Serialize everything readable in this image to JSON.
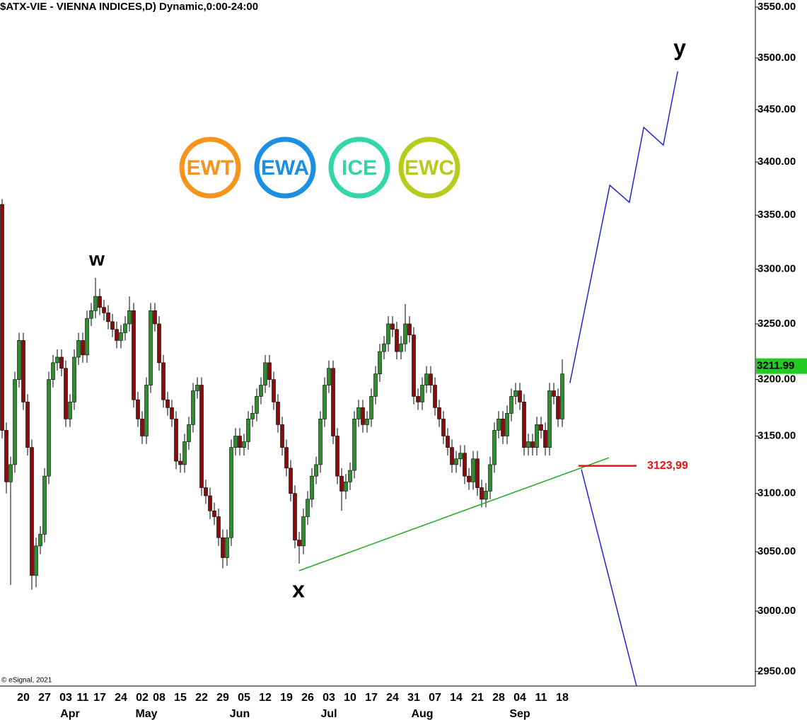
{
  "chart_data": {
    "type": "candlestick",
    "title": "$ATX-VIE - VIENNA INDICES,D) Dynamic,0:00-24:00",
    "copyright": "© eSignal, 2021",
    "badges": [
      "EWT",
      "EWA",
      "ICE",
      "EWC"
    ],
    "annotations": [
      "w",
      "x",
      "y"
    ],
    "log_scale": true,
    "up_color": "#2f8f2f",
    "down_color": "#8b0a0a",
    "ylim": [
      2938,
      3557
    ],
    "yticks": [
      {
        "value": 3550,
        "label": "3550.00"
      },
      {
        "value": 3500,
        "label": "3500.00"
      },
      {
        "value": 3450,
        "label": "3450.00"
      },
      {
        "value": 3400,
        "label": "3400.00"
      },
      {
        "value": 3350,
        "label": "3350.00"
      },
      {
        "value": 3300,
        "label": "3300.00"
      },
      {
        "value": 3250,
        "label": "3250.00"
      },
      {
        "value": 3200,
        "label": "3200.00"
      },
      {
        "value": 3150,
        "label": "3150.00"
      },
      {
        "value": 3100,
        "label": "3100.00"
      },
      {
        "value": 3050,
        "label": "3050.00"
      },
      {
        "value": 3000,
        "label": "3000.00"
      },
      {
        "value": 2950,
        "label": "2950.00"
      }
    ],
    "last_price": {
      "value": 3211.99,
      "label": "3211.99",
      "color": "#22cc22"
    },
    "level": {
      "value": 3123.99,
      "label": "3123,99",
      "color": "#ee1111"
    },
    "categories": [
      null,
      null,
      null,
      null,
      null,
      "20",
      null,
      null,
      null,
      null,
      "27",
      null,
      null,
      null,
      null,
      "03",
      null,
      null,
      null,
      "11",
      null,
      null,
      null,
      "17",
      null,
      null,
      null,
      null,
      "24",
      null,
      null,
      null,
      null,
      "02",
      null,
      null,
      null,
      "08",
      null,
      null,
      null,
      null,
      "15",
      null,
      null,
      null,
      null,
      "22",
      null,
      null,
      null,
      null,
      "29",
      null,
      null,
      null,
      null,
      "05",
      null,
      null,
      null,
      null,
      "12",
      null,
      null,
      null,
      null,
      "19",
      null,
      null,
      null,
      null,
      "26",
      null,
      null,
      null,
      null,
      "03",
      null,
      null,
      null,
      null,
      "10",
      null,
      null,
      null,
      null,
      "17",
      null,
      null,
      null,
      null,
      "24",
      null,
      null,
      null,
      null,
      "31",
      null,
      null,
      null,
      null,
      "07",
      null,
      null,
      null,
      null,
      "14",
      null,
      null,
      null,
      null,
      "21",
      null,
      null,
      null,
      null,
      "28",
      null,
      null,
      null,
      null,
      "04",
      null,
      null,
      null,
      null,
      "11",
      null,
      null,
      null,
      null,
      "18"
    ],
    "months": [
      null,
      null,
      null,
      null,
      null,
      null,
      null,
      null,
      null,
      null,
      null,
      null,
      null,
      null,
      null,
      null,
      "Apr",
      null,
      null,
      null,
      null,
      null,
      null,
      null,
      null,
      null,
      null,
      null,
      null,
      null,
      null,
      null,
      null,
      null,
      "May",
      null,
      null,
      null,
      null,
      null,
      null,
      null,
      null,
      null,
      null,
      null,
      null,
      null,
      null,
      null,
      null,
      null,
      null,
      null,
      null,
      null,
      "Jun",
      null,
      null,
      null,
      null,
      null,
      null,
      null,
      null,
      null,
      null,
      null,
      null,
      null,
      null,
      null,
      null,
      null,
      null,
      null,
      null,
      "Jul",
      null,
      null,
      null,
      null,
      null,
      null,
      null,
      null,
      null,
      null,
      null,
      null,
      null,
      null,
      null,
      null,
      null,
      null,
      null,
      null,
      null,
      "Aug",
      null,
      null,
      null,
      null,
      null,
      null,
      null,
      null,
      null,
      null,
      null,
      null,
      null,
      null,
      null,
      null,
      null,
      null,
      null,
      null,
      null,
      null,
      "Sep",
      null,
      null,
      null,
      null,
      null,
      null,
      null,
      null,
      null,
      null
    ],
    "open": [
      3360,
      3155,
      3110,
      3125,
      3200,
      3235,
      3180,
      3140,
      3030,
      3055,
      3065,
      3115,
      3200,
      3215,
      3220,
      3210,
      3165,
      3180,
      3220,
      3235,
      3222,
      3255,
      3262,
      3275,
      3265,
      3260,
      3252,
      3245,
      3235,
      3242,
      3250,
      3262,
      3182,
      3165,
      3150,
      3195,
      3262,
      3250,
      3215,
      3182,
      3175,
      3165,
      3128,
      3125,
      3145,
      3160,
      3190,
      3195,
      3105,
      3098,
      3085,
      3080,
      3062,
      3045,
      3062,
      3140,
      3150,
      3140,
      3145,
      3165,
      3170,
      3185,
      3195,
      3215,
      3200,
      3180,
      3160,
      3140,
      3122,
      3100,
      3060,
      3055,
      3080,
      3095,
      3115,
      3125,
      3165,
      3195,
      3210,
      3150,
      3115,
      3102,
      3110,
      3120,
      3165,
      3175,
      3160,
      3165,
      3185,
      3205,
      3225,
      3232,
      3250,
      3245,
      3225,
      3232,
      3250,
      3240,
      3185,
      3180,
      3195,
      3205,
      3195,
      3175,
      3165,
      3150,
      3140,
      3125,
      3130,
      3135,
      3115,
      3110,
      3130,
      3105,
      3095,
      3102,
      3125,
      3155,
      3165,
      3150,
      3170,
      3185,
      3190,
      3180,
      3140,
      3145,
      3140,
      3160,
      3155,
      3140,
      3190,
      3185,
      3165
    ],
    "high": [
      3365,
      3162,
      3132,
      3207,
      3242,
      3242,
      3187,
      3147,
      3062,
      3072,
      3122,
      3207,
      3222,
      3227,
      3227,
      3217,
      3187,
      3227,
      3242,
      3242,
      3262,
      3269,
      3292,
      3282,
      3272,
      3267,
      3259,
      3252,
      3249,
      3257,
      3275,
      3269,
      3189,
      3172,
      3202,
      3269,
      3269,
      3257,
      3222,
      3189,
      3182,
      3172,
      3135,
      3152,
      3167,
      3197,
      3202,
      3202,
      3112,
      3105,
      3092,
      3087,
      3069,
      3069,
      3147,
      3157,
      3157,
      3152,
      3172,
      3177,
      3192,
      3202,
      3222,
      3222,
      3207,
      3187,
      3167,
      3147,
      3129,
      3107,
      3067,
      3087,
      3102,
      3122,
      3132,
      3172,
      3202,
      3217,
      3217,
      3157,
      3122,
      3117,
      3127,
      3172,
      3182,
      3182,
      3172,
      3192,
      3212,
      3232,
      3239,
      3257,
      3257,
      3252,
      3239,
      3268,
      3257,
      3247,
      3192,
      3202,
      3212,
      3212,
      3202,
      3182,
      3172,
      3157,
      3147,
      3137,
      3142,
      3142,
      3122,
      3137,
      3137,
      3112,
      3109,
      3132,
      3162,
      3172,
      3172,
      3177,
      3192,
      3197,
      3197,
      3187,
      3152,
      3152,
      3167,
      3167,
      3162,
      3197,
      3197,
      3192,
      3218
    ],
    "low": [
      3148,
      3100,
      3022,
      3118,
      3193,
      3173,
      3133,
      3018,
      3020,
      3048,
      3058,
      3108,
      3193,
      3208,
      3203,
      3158,
      3158,
      3173,
      3213,
      3215,
      3215,
      3248,
      3255,
      3258,
      3253,
      3245,
      3238,
      3228,
      3228,
      3235,
      3243,
      3175,
      3158,
      3143,
      3143,
      3188,
      3243,
      3208,
      3175,
      3168,
      3158,
      3121,
      3118,
      3118,
      3138,
      3153,
      3183,
      3098,
      3091,
      3078,
      3073,
      3055,
      3036,
      3038,
      3055,
      3133,
      3133,
      3133,
      3138,
      3158,
      3163,
      3178,
      3188,
      3193,
      3173,
      3153,
      3133,
      3115,
      3093,
      3053,
      3040,
      3048,
      3073,
      3088,
      3108,
      3118,
      3158,
      3188,
      3143,
      3108,
      3085,
      3095,
      3103,
      3113,
      3158,
      3153,
      3153,
      3158,
      3178,
      3198,
      3218,
      3225,
      3238,
      3218,
      3218,
      3225,
      3233,
      3178,
      3173,
      3173,
      3188,
      3188,
      3168,
      3158,
      3143,
      3133,
      3118,
      3118,
      3123,
      3108,
      3103,
      3103,
      3098,
      3088,
      3088,
      3095,
      3118,
      3148,
      3143,
      3143,
      3163,
      3178,
      3173,
      3133,
      3133,
      3133,
      3133,
      3148,
      3133,
      3133,
      3178,
      3158,
      3158
    ],
    "close": [
      3155,
      3110,
      3125,
      3200,
      3235,
      3180,
      3140,
      3030,
      3055,
      3065,
      3115,
      3200,
      3215,
      3220,
      3210,
      3165,
      3180,
      3220,
      3235,
      3222,
      3255,
      3262,
      3275,
      3265,
      3260,
      3252,
      3245,
      3235,
      3242,
      3250,
      3262,
      3182,
      3165,
      3150,
      3195,
      3262,
      3250,
      3215,
      3182,
      3175,
      3165,
      3128,
      3125,
      3145,
      3160,
      3190,
      3195,
      3105,
      3098,
      3085,
      3080,
      3062,
      3045,
      3062,
      3140,
      3150,
      3140,
      3145,
      3165,
      3170,
      3185,
      3195,
      3215,
      3200,
      3180,
      3160,
      3140,
      3122,
      3100,
      3060,
      3055,
      3080,
      3095,
      3115,
      3125,
      3165,
      3195,
      3210,
      3150,
      3115,
      3102,
      3110,
      3120,
      3165,
      3175,
      3160,
      3165,
      3185,
      3205,
      3225,
      3232,
      3250,
      3245,
      3225,
      3232,
      3250,
      3240,
      3185,
      3180,
      3195,
      3205,
      3195,
      3175,
      3165,
      3150,
      3140,
      3125,
      3130,
      3135,
      3115,
      3110,
      3130,
      3105,
      3095,
      3102,
      3125,
      3155,
      3165,
      3150,
      3170,
      3185,
      3190,
      3180,
      3140,
      3145,
      3140,
      3160,
      3155,
      3140,
      3190,
      3185,
      3165,
      3205
    ],
    "lines": [
      {
        "color": "#22aa22",
        "x": [
          70,
          143
        ],
        "values": [
          3034,
          3131
        ]
      },
      {
        "color": "#2222dd",
        "x": [
          133.8,
          143.2,
          147.8,
          151.2,
          155.8,
          159.2
        ],
        "values": [
          3197,
          3378,
          3362,
          3433,
          3416,
          3487
        ]
      },
      {
        "color": "#2222dd",
        "x": [
          136.5,
          149.5
        ],
        "values": [
          3121,
          2938
        ]
      }
    ]
  }
}
